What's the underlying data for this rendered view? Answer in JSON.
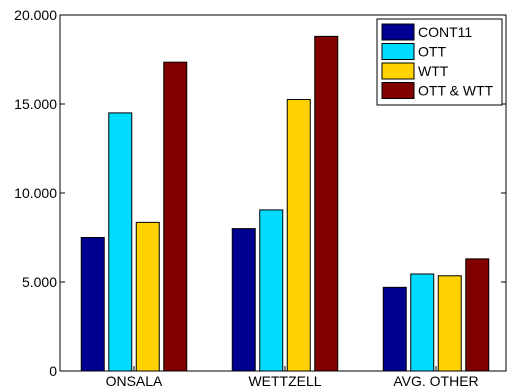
{
  "chart_data": {
    "type": "bar",
    "title": "",
    "xlabel": "",
    "ylabel": "",
    "categories": [
      "ONSALA",
      "WETTZELL",
      "AVG. OTHER"
    ],
    "ylim": [
      0,
      20
    ],
    "y_ticks": [
      0,
      5,
      10,
      15,
      20
    ],
    "y_tick_labels": [
      "0",
      "5.000",
      "10.000",
      "15.000",
      "20.000"
    ],
    "grid": false,
    "legend_position": "top-right",
    "series": [
      {
        "name": "CONT11",
        "color": "#000090",
        "values": [
          7.5,
          8.0,
          4.7
        ]
      },
      {
        "name": "OTT",
        "color": "#00dcff",
        "values": [
          14.5,
          9.05,
          5.45
        ]
      },
      {
        "name": "WTT",
        "color": "#ffd200",
        "values": [
          8.35,
          15.25,
          5.35
        ]
      },
      {
        "name": "OTT & WTT",
        "color": "#800000",
        "values": [
          17.35,
          18.8,
          6.3
        ]
      }
    ]
  }
}
